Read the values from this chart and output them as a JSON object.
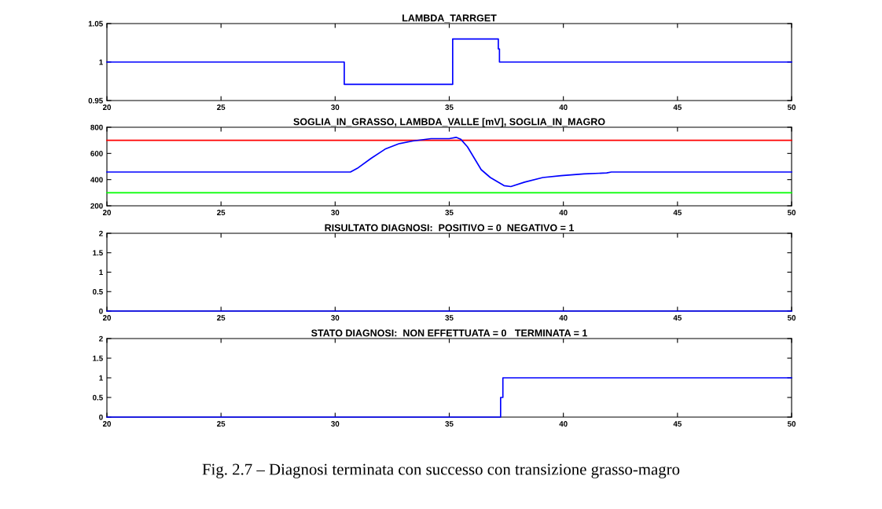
{
  "chart_data": [
    {
      "type": "line",
      "title": "LAMBDA_TARRGET",
      "xlim": [
        20,
        50
      ],
      "xticks": [
        20,
        25,
        30,
        35,
        40,
        45,
        50
      ],
      "ylim": [
        0.95,
        1.05
      ],
      "yticks": [
        0.95,
        1,
        1.05
      ],
      "grid": false,
      "legend": false,
      "series": [
        {
          "color": "#0000ff",
          "x": [
            20,
            30.4,
            30.4,
            35.15,
            35.15,
            37.15,
            37.15,
            37.2,
            37.2,
            50
          ],
          "values": [
            1,
            1,
            0.971,
            0.971,
            1.03,
            1.03,
            1.017,
            1.017,
            1,
            1
          ]
        }
      ]
    },
    {
      "type": "line",
      "title": "SOGLIA_IN_GRASSO, LAMBDA_VALLE [mV], SOGLIA_IN_MAGRO",
      "xlim": [
        20,
        50
      ],
      "xticks": [
        20,
        25,
        30,
        35,
        40,
        45,
        50
      ],
      "ylim": [
        200,
        800
      ],
      "yticks": [
        200,
        400,
        600,
        800
      ],
      "grid": false,
      "legend": false,
      "series": [
        {
          "color": "#ff0000",
          "x": [
            20,
            50
          ],
          "values": [
            700,
            700
          ]
        },
        {
          "color": "#00ff00",
          "x": [
            20,
            50
          ],
          "values": [
            300,
            300
          ]
        },
        {
          "color": "#0000ff",
          "x": [
            20,
            30.67,
            30.97,
            31.58,
            32.19,
            32.79,
            33.4,
            34.2,
            35.0,
            35.3,
            35.5,
            35.8,
            36.1,
            36.4,
            36.8,
            37.4,
            37.7,
            38.3,
            39.1,
            39.9,
            40.9,
            41.9,
            42.1,
            50
          ],
          "values": [
            458,
            458,
            486,
            563,
            633,
            674,
            695,
            713,
            713,
            723,
            709,
            650,
            563,
            476,
            416,
            354,
            347,
            381,
            416,
            430,
            444,
            451,
            458,
            458
          ]
        }
      ]
    },
    {
      "type": "line",
      "title": "RISULTATO DIAGNOSI:  POSITIVO = 0  NEGATIVO = 1",
      "xlim": [
        20,
        50
      ],
      "xticks": [
        20,
        25,
        30,
        35,
        40,
        45,
        50
      ],
      "ylim": [
        0,
        2
      ],
      "yticks": [
        0,
        0.5,
        1,
        1.5,
        2
      ],
      "grid": false,
      "legend": false,
      "series": [
        {
          "color": "#0000ff",
          "x": [
            20,
            50
          ],
          "values": [
            0,
            0
          ]
        }
      ]
    },
    {
      "type": "line",
      "title": "STATO DIAGNOSI:  NON EFFETTUATA = 0   TERMINATA = 1",
      "xlim": [
        20,
        50
      ],
      "xticks": [
        20,
        25,
        30,
        35,
        40,
        45,
        50
      ],
      "ylim": [
        0,
        2
      ],
      "yticks": [
        0,
        0.5,
        1,
        1.5,
        2
      ],
      "grid": false,
      "legend": false,
      "series": [
        {
          "color": "#0000ff",
          "x": [
            20,
            37.25,
            37.25,
            37.35,
            37.35,
            50
          ],
          "values": [
            0,
            0,
            0.5,
            0.5,
            1,
            1
          ]
        }
      ],
      "annotations": [
        "Fig. 2.7 – Diagnosi terminata con successo con transizione grasso-magro"
      ]
    }
  ]
}
